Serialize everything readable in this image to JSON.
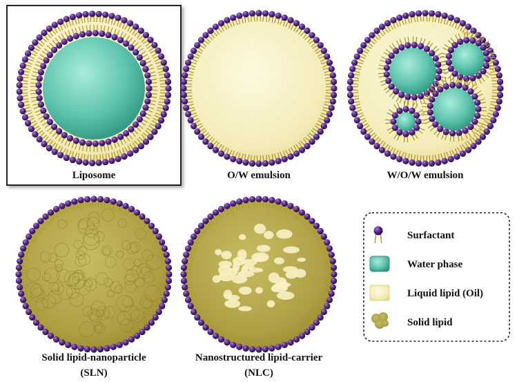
{
  "panels": [
    {
      "label": [
        "Liposome"
      ]
    },
    {
      "label": [
        "O/W emulsion"
      ]
    },
    {
      "label": [
        "W/O/W emulsion"
      ]
    },
    {
      "label": [
        "Solid lipid-nanoparticle",
        "(SLN)"
      ]
    },
    {
      "label": [
        "Nanostructured lipid-carrier",
        "(NLC)"
      ]
    }
  ],
  "legend": {
    "items": [
      "Surfactant",
      "Water phase",
      "Liquid lipid (Oil)",
      "Solid lipid"
    ]
  }
}
